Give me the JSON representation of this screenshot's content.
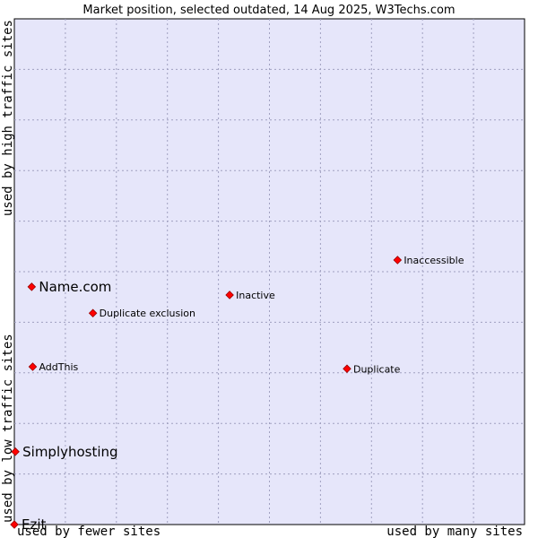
{
  "chart_data": {
    "type": "scatter",
    "title": "Market position, selected outdated, 14 Aug 2025, W3Techs.com",
    "xlabel_left": "used by fewer sites",
    "xlabel_right": "used by many sites",
    "ylabel_top": "used by high traffic sites",
    "ylabel_bottom": "used by low traffic sites",
    "xlim": [
      0,
      100
    ],
    "ylim": [
      0,
      100
    ],
    "grid": true,
    "colors": {
      "plot_bg": "#e6e6fa",
      "point": "#ff0000",
      "point_stroke": "#990000",
      "grid": "#a0a0c0"
    },
    "points": [
      {
        "label": "Inaccessible",
        "x": 75.1,
        "y": 52.3,
        "size": "small"
      },
      {
        "label": "Name.com",
        "x": 3.4,
        "y": 47.0,
        "size": "large"
      },
      {
        "label": "Inactive",
        "x": 42.2,
        "y": 45.4,
        "size": "small"
      },
      {
        "label": "Duplicate exclusion",
        "x": 15.4,
        "y": 41.8,
        "size": "small"
      },
      {
        "label": "AddThis",
        "x": 3.6,
        "y": 31.2,
        "size": "small"
      },
      {
        "label": "Duplicate",
        "x": 65.2,
        "y": 30.8,
        "size": "small"
      },
      {
        "label": "Simplyhosting",
        "x": 0.2,
        "y": 14.4,
        "size": "large"
      },
      {
        "label": "Ezit",
        "x": 0.0,
        "y": 0.0,
        "size": "large"
      }
    ]
  }
}
